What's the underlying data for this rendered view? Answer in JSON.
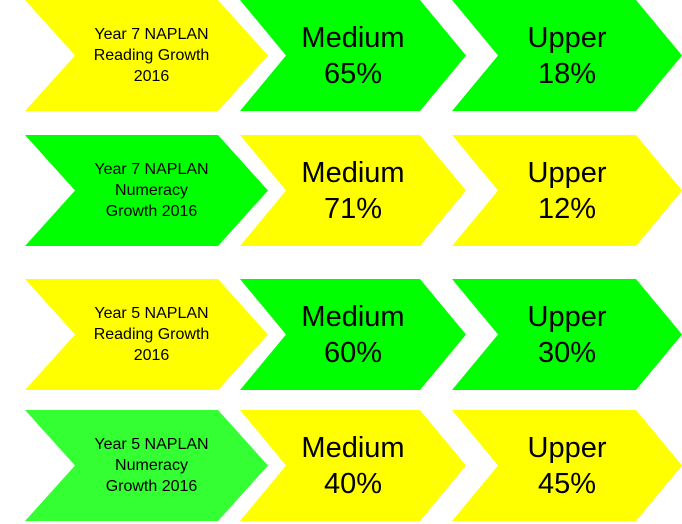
{
  "rows": [
    {
      "label": "Year 7 NAPLAN Reading Growth 2016",
      "label_color": "#ffff00",
      "medium": {
        "name": "Medium",
        "value": "65%",
        "color": "#00ff00"
      },
      "upper": {
        "name": "Upper",
        "value": "18%",
        "color": "#00ff00"
      }
    },
    {
      "label": "Year 7 NAPLAN Numeracy Growth 2016",
      "label_color": "#00ff00",
      "medium": {
        "name": "Medium",
        "value": "71%",
        "color": "#ffff00"
      },
      "upper": {
        "name": "Upper",
        "value": "12%",
        "color": "#ffff00"
      }
    },
    {
      "label": "Year 5 NAPLAN Reading Growth 2016",
      "label_color": "#ffff00",
      "medium": {
        "name": "Medium",
        "value": "60%",
        "color": "#00ff00"
      },
      "upper": {
        "name": "Upper",
        "value": "30%",
        "color": "#00ff00"
      }
    },
    {
      "label": "Year 5 NAPLAN Numeracy Growth 2016",
      "label_color": "#33ff33",
      "medium": {
        "name": "Medium",
        "value": "40%",
        "color": "#ffff00"
      },
      "upper": {
        "name": "Upper",
        "value": "45%",
        "color": "#ffff00"
      }
    }
  ]
}
